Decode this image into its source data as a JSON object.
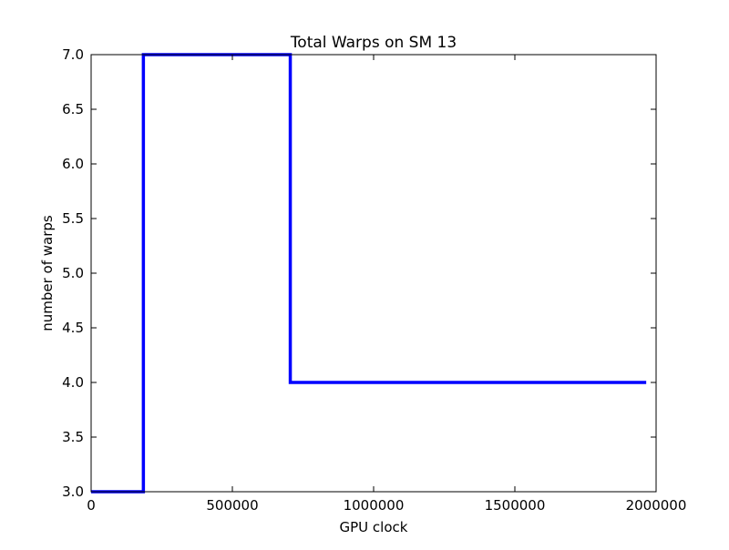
{
  "chart_data": {
    "type": "line",
    "title": "Total Warps on SM 13",
    "xlabel": "GPU clock",
    "ylabel": "number of warps",
    "xlim": [
      0,
      2000000
    ],
    "ylim": [
      3.0,
      7.0
    ],
    "x_ticks": [
      0,
      500000,
      1000000,
      1500000,
      2000000
    ],
    "x_tick_labels": [
      "0",
      "500000",
      "1000000",
      "1500000",
      "2000000"
    ],
    "y_ticks": [
      3.0,
      3.5,
      4.0,
      4.5,
      5.0,
      5.5,
      6.0,
      6.5,
      7.0
    ],
    "y_tick_labels": [
      "3.0",
      "3.5",
      "4.0",
      "4.5",
      "5.0",
      "5.5",
      "6.0",
      "6.5",
      "7.0"
    ],
    "grid": false,
    "series": [
      {
        "color": "#0000ff",
        "x": [
          0,
          185000,
          185000,
          705000,
          705000,
          1965000
        ],
        "y": [
          3,
          3,
          7,
          7,
          4,
          4
        ]
      }
    ]
  }
}
